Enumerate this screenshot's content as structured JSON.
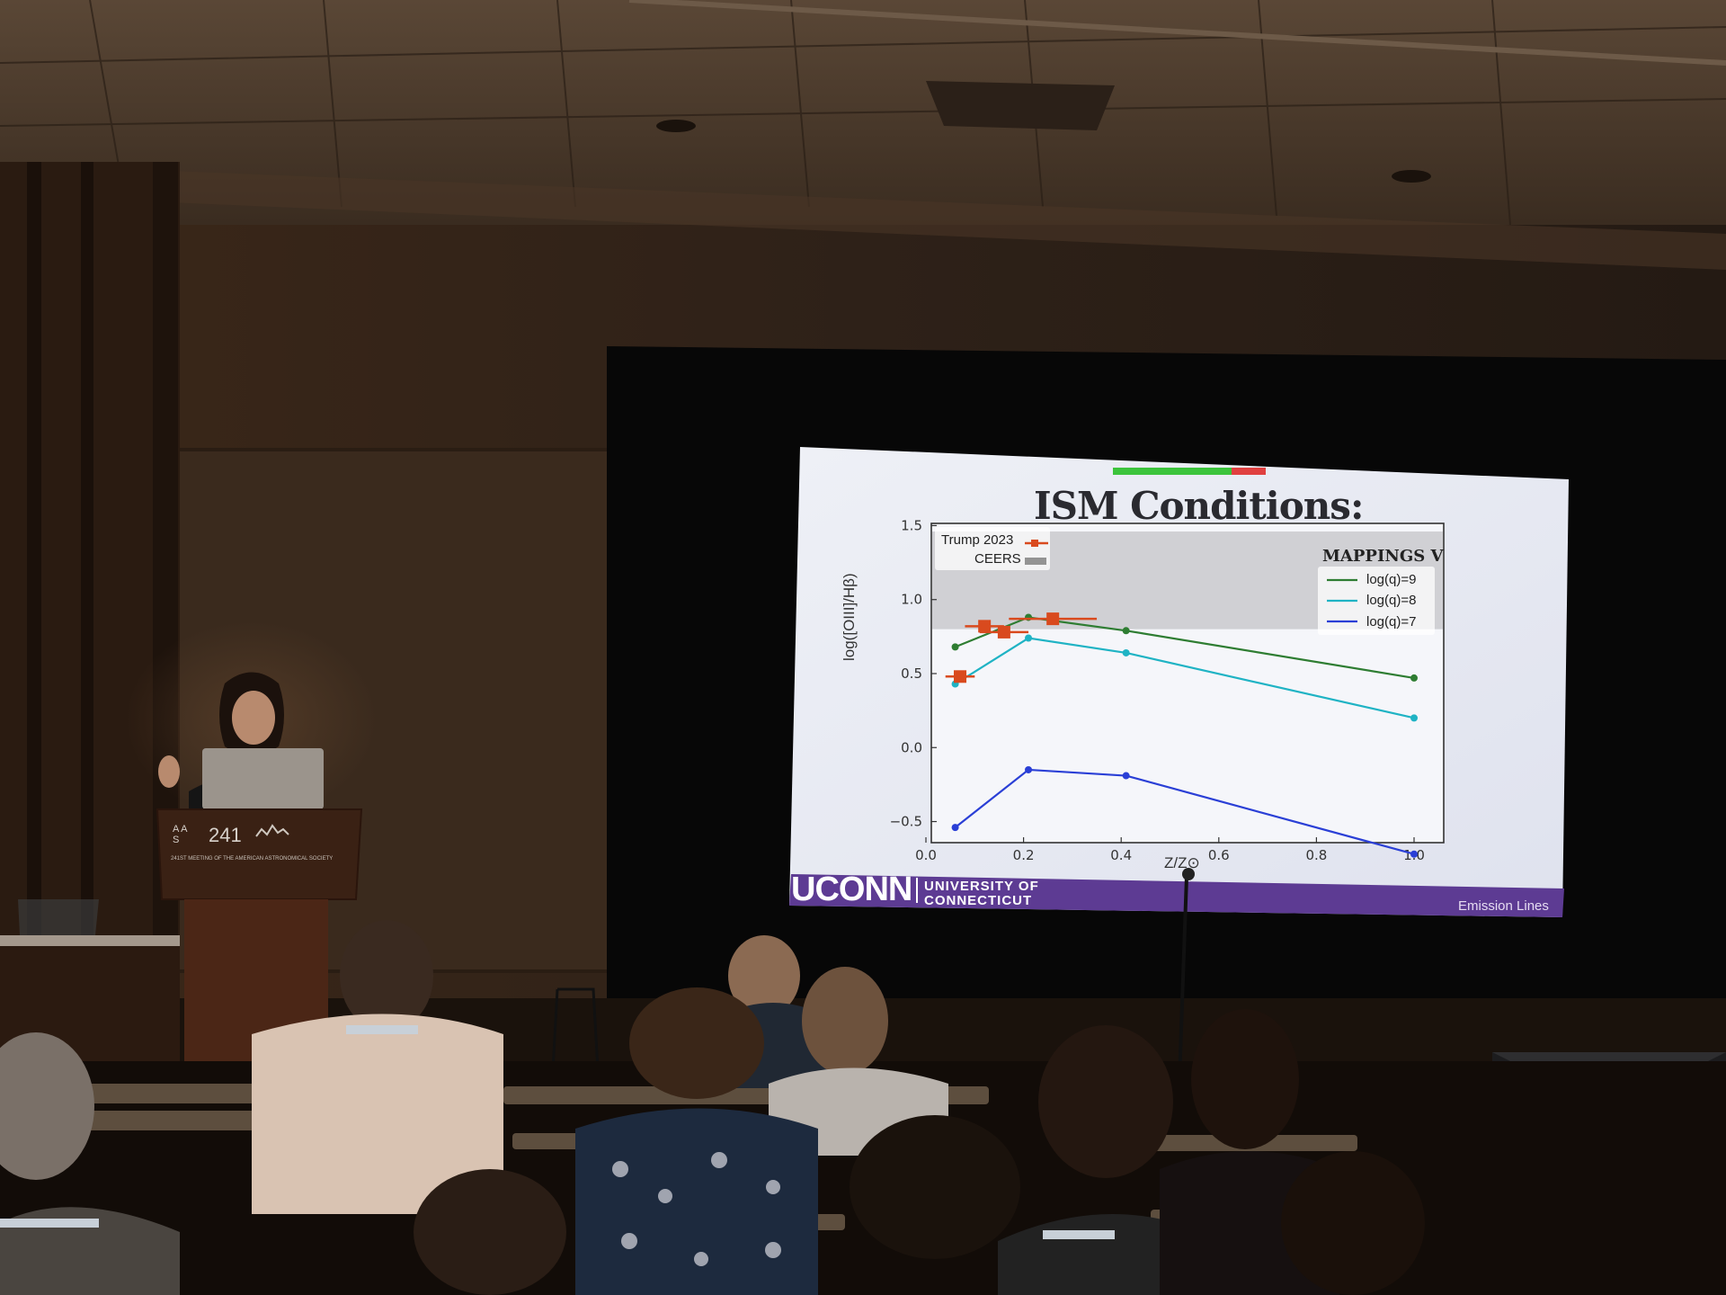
{
  "slide": {
    "title": "ISM Conditions:",
    "footer_logo": "UCONN",
    "footer_univ_line1": "UNIVERSITY OF",
    "footer_univ_line2": "CONNECTICUT",
    "footer_label": "Emission Lines"
  },
  "podium": {
    "aas_mark": "A A\nS",
    "meeting_number": "241",
    "caption": "241ST MEETING OF THE AMERICAN ASTRONOMICAL SOCIETY"
  },
  "laptop": {
    "logo_icon": "apple-icon",
    "logo_glyph": ""
  },
  "chart_data": {
    "type": "line",
    "title": "ISM Conditions:",
    "xlabel": "Z/Z⊙",
    "ylabel": "log([OIII]/Hβ)",
    "xlim": [
      0.0,
      1.05
    ],
    "ylim": [
      -0.6,
      1.6
    ],
    "xticks": [
      "0.0",
      "0.2",
      "0.4",
      "0.6",
      "0.8",
      "1.0"
    ],
    "yticks": [
      "−0.5",
      "0.0",
      "0.5",
      "1.0",
      "1.5"
    ],
    "legend_title": "MAPPINGS V",
    "legend_placement": "top-right",
    "series": [
      {
        "name": "log(q)=9",
        "color": "#2e7d32",
        "x": [
          0.06,
          0.21,
          0.41,
          1.0
        ],
        "y": [
          0.68,
          0.88,
          0.79,
          0.47
        ]
      },
      {
        "name": "log(q)=8",
        "color": "#1fb3c4",
        "x": [
          0.06,
          0.21,
          0.41,
          1.0
        ],
        "y": [
          0.43,
          0.74,
          0.64,
          0.2
        ]
      },
      {
        "name": "log(q)=7",
        "color": "#2a3fd6",
        "x": [
          0.06,
          0.21,
          0.41,
          1.0
        ],
        "y": [
          -0.54,
          -0.15,
          -0.19,
          -0.72
        ]
      }
    ],
    "observations": {
      "name": "Trump 2023",
      "color": "#d94a1e",
      "points": [
        {
          "x": 0.07,
          "y": 0.48,
          "xerr": 0.03
        },
        {
          "x": 0.12,
          "y": 0.82,
          "xerr": 0.04
        },
        {
          "x": 0.16,
          "y": 0.78,
          "xerr": 0.05
        },
        {
          "x": 0.26,
          "y": 0.87,
          "xerr": 0.09
        }
      ]
    },
    "band": {
      "name": "CEERS",
      "color": "#c9c9cc",
      "y_low": 0.8,
      "y_high": 1.46
    }
  }
}
